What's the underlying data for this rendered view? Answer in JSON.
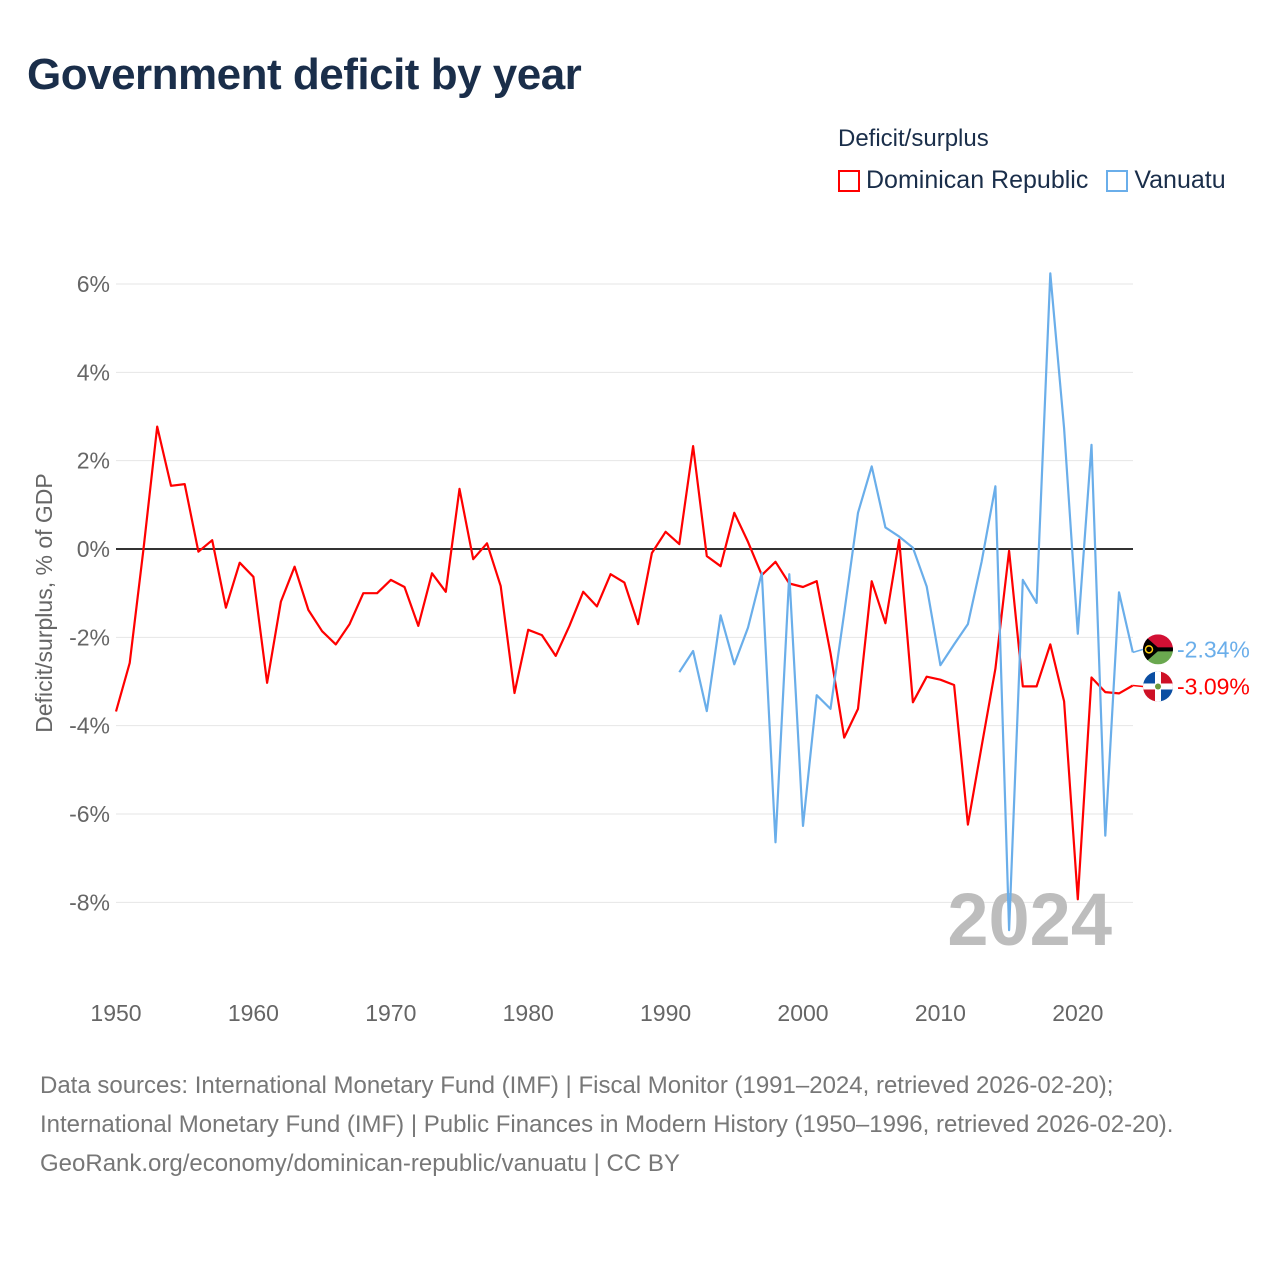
{
  "title": "Government deficit by year",
  "legend": {
    "title": "Deficit/surplus",
    "items": [
      {
        "label": "Dominican Republic",
        "color": "#ff0000"
      },
      {
        "label": "Vanuatu",
        "color": "#6aaeea"
      }
    ]
  },
  "footer": {
    "sources": "Data sources: International Monetary Fund (IMF) | Fiscal Monitor (1991–2024, retrieved 2026-02-20); International Monetary Fund (IMF) | Public Finances in Modern History (1950–1996, retrieved 2026-02-20).",
    "credit": "GeoRank.org/economy/dominican-republic/vanuatu | CC BY"
  },
  "chart_data": {
    "type": "line",
    "title": "Government deficit by year",
    "ylabel": "Deficit/surplus, % of GDP",
    "xlabel": "",
    "year_watermark": "2024",
    "xlim": [
      1950,
      2024
    ],
    "ylim": [
      -9.5,
      6.5
    ],
    "x_ticks": [
      1950,
      1960,
      1970,
      1980,
      1990,
      2000,
      2010,
      2020
    ],
    "y_ticks": [
      6,
      4,
      2,
      0,
      -2,
      -4,
      -6,
      -8
    ],
    "y_tick_labels": [
      "6%",
      "4%",
      "2%",
      "0%",
      "-2%",
      "-4%",
      "-6%",
      "-8%"
    ],
    "grid": true,
    "legend_position": "top-right",
    "series": [
      {
        "name": "Dominican Republic",
        "color": "#ff0000",
        "start_year": 1950,
        "end_label": "-3.09%",
        "values": [
          -3.68,
          -2.58,
          0.0,
          2.77,
          1.43,
          1.47,
          -0.06,
          0.2,
          -1.33,
          -0.31,
          -0.63,
          -3.03,
          -1.19,
          -0.4,
          -1.38,
          -1.86,
          -2.16,
          -1.7,
          -1.0,
          -1.0,
          -0.7,
          -0.86,
          -1.74,
          -0.55,
          -0.97,
          1.36,
          -0.23,
          0.13,
          -0.84,
          -3.26,
          -1.83,
          -1.95,
          -2.42,
          -1.74,
          -0.97,
          -1.3,
          -0.57,
          -0.76,
          -1.7,
          -0.09,
          0.39,
          0.11,
          2.33,
          -0.16,
          -0.39,
          0.82,
          0.16,
          -0.59,
          -0.29,
          -0.78,
          -0.86,
          -0.73,
          -2.36,
          -4.27,
          -3.62,
          -0.73,
          -1.68,
          0.21,
          -3.47,
          -2.89,
          -2.96,
          -3.08,
          -6.24,
          -4.47,
          -2.71,
          -0.04,
          -3.11,
          -3.11,
          -2.16,
          -3.45,
          -7.93,
          -2.91,
          -3.24,
          -3.27,
          -3.09
        ]
      },
      {
        "name": "Vanuatu",
        "color": "#6aaeea",
        "start_year": 1991,
        "end_label": "-2.34%",
        "values": [
          -2.79,
          -2.31,
          -3.67,
          -1.5,
          -2.61,
          -1.78,
          -0.54,
          -6.64,
          -0.57,
          -6.27,
          -3.31,
          -3.62,
          -1.45,
          0.82,
          1.87,
          0.49,
          0.28,
          0.03,
          -0.85,
          -2.63,
          -2.16,
          -1.7,
          -0.29,
          1.42,
          -8.63,
          -0.7,
          -1.22,
          6.24,
          2.73,
          -1.92,
          2.36,
          -6.49,
          -0.98,
          -2.34
        ]
      }
    ]
  }
}
